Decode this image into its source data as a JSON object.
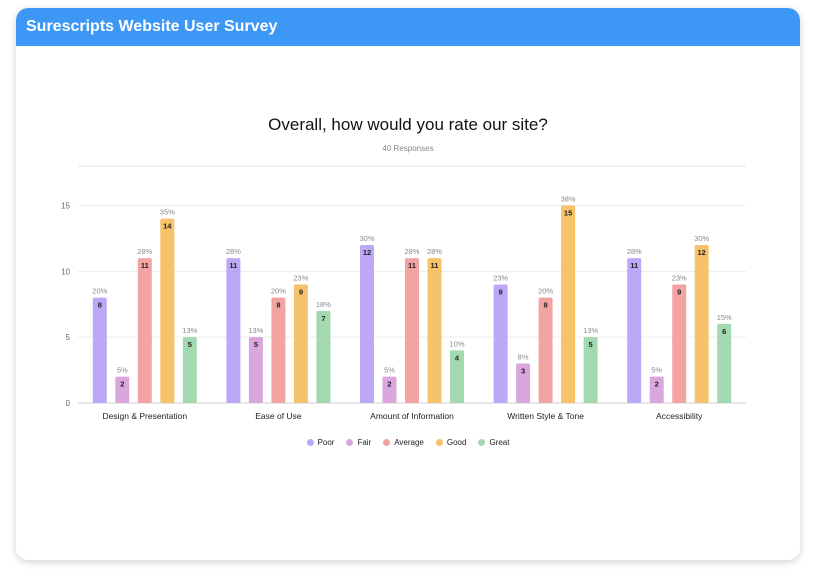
{
  "header": {
    "title": "Surescripts Website User Survey"
  },
  "chart_data": {
    "type": "bar",
    "title": "Overall, how would you rate our site?",
    "subtitle": "40 Responses",
    "categories": [
      "Design & Presentation",
      "Ease of Use",
      "Amount of Information",
      "Written Style & Tone",
      "Accessibility"
    ],
    "series": [
      {
        "name": "Poor",
        "color": "#bda8f7",
        "values": [
          8,
          11,
          12,
          9,
          11
        ],
        "labels": [
          "20%",
          "28%",
          "30%",
          "23%",
          "28%"
        ]
      },
      {
        "name": "Fair",
        "color": "#d9a6dd",
        "values": [
          2,
          5,
          2,
          3,
          2
        ],
        "labels": [
          "5%",
          "13%",
          "5%",
          "8%",
          "5%"
        ]
      },
      {
        "name": "Average",
        "color": "#f2a4a3",
        "values": [
          11,
          8,
          11,
          8,
          9
        ],
        "labels": [
          "28%",
          "20%",
          "28%",
          "20%",
          "23%"
        ]
      },
      {
        "name": "Good",
        "color": "#f6c36b",
        "values": [
          14,
          9,
          11,
          15,
          12
        ],
        "labels": [
          "35%",
          "23%",
          "28%",
          "38%",
          "30%"
        ]
      },
      {
        "name": "Great",
        "color": "#a3d9b1",
        "values": [
          5,
          7,
          4,
          5,
          6
        ],
        "labels": [
          "13%",
          "18%",
          "10%",
          "13%",
          "15%"
        ]
      }
    ],
    "yticks": [
      0,
      5,
      10,
      15
    ],
    "ylim": [
      0,
      18
    ],
    "grid": true,
    "legend": "bottom"
  }
}
